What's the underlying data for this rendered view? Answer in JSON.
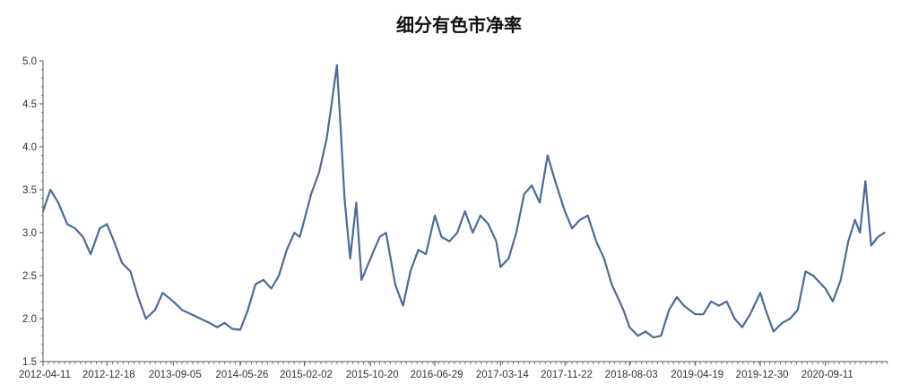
{
  "title": "细分有色市净率",
  "chart_data": {
    "type": "line",
    "title": "细分有色市净率",
    "xlabel": "",
    "ylabel": "",
    "ylim": [
      1.5,
      5.0
    ],
    "yticks": [
      "1.5",
      "2.0",
      "2.5",
      "3.0",
      "3.5",
      "4.0",
      "4.5",
      "5.0"
    ],
    "xticks": [
      "2012-04-11",
      "2012-12-18",
      "2013-09-05",
      "2014-05-26",
      "2015-02-02",
      "2015-10-20",
      "2016-06-29",
      "2017-03-14",
      "2017-11-22",
      "2018-08-03",
      "2019-04-19",
      "2019-12-30",
      "2020-09-11"
    ],
    "grid": false,
    "legend": "none",
    "line_color": "#4a6c9b",
    "series": [
      {
        "x": [
          "2012-04-11",
          "2012-05-10",
          "2012-06-10",
          "2012-07-15",
          "2012-08-15",
          "2012-09-15",
          "2012-10-15",
          "2012-11-20",
          "2012-12-18",
          "2013-01-15",
          "2013-02-15",
          "2013-03-20",
          "2013-04-20",
          "2013-05-20",
          "2013-06-25",
          "2013-07-25",
          "2013-09-05",
          "2013-10-10",
          "2013-11-15",
          "2013-12-20",
          "2014-01-25",
          "2014-02-25",
          "2014-03-25",
          "2014-04-25",
          "2014-05-26",
          "2014-06-25",
          "2014-07-25",
          "2014-08-25",
          "2014-09-25",
          "2014-10-25",
          "2014-11-25",
          "2014-12-25",
          "2015-01-15",
          "2015-02-02",
          "2015-03-01",
          "2015-04-01",
          "2015-05-01",
          "2015-05-20",
          "2015-06-10",
          "2015-06-25",
          "2015-07-10",
          "2015-08-01",
          "2015-08-25",
          "2015-09-15",
          "2015-10-20",
          "2015-11-25",
          "2015-12-20",
          "2016-01-25",
          "2016-02-25",
          "2016-03-25",
          "2016-04-25",
          "2016-05-25",
          "2016-06-29",
          "2016-07-25",
          "2016-08-25",
          "2016-09-25",
          "2016-10-25",
          "2016-11-25",
          "2016-12-25",
          "2017-01-25",
          "2017-02-25",
          "2017-03-14",
          "2017-04-15",
          "2017-05-15",
          "2017-06-15",
          "2017-07-15",
          "2017-08-15",
          "2017-09-15",
          "2017-10-15",
          "2017-11-22",
          "2017-12-20",
          "2018-01-20",
          "2018-02-20",
          "2018-03-25",
          "2018-04-25",
          "2018-05-25",
          "2018-06-25",
          "2018-07-10",
          "2018-08-03",
          "2018-09-05",
          "2018-10-05",
          "2018-11-05",
          "2018-12-05",
          "2019-01-05",
          "2019-02-05",
          "2019-03-05",
          "2019-04-19",
          "2019-05-20",
          "2019-06-20",
          "2019-07-20",
          "2019-08-20",
          "2019-09-20",
          "2019-10-20",
          "2019-11-20",
          "2019-12-30",
          "2020-01-20",
          "2020-02-20",
          "2020-03-25",
          "2020-04-25",
          "2020-05-25",
          "2020-06-25",
          "2020-07-25",
          "2020-09-11",
          "2020-10-10",
          "2020-11-10",
          "2020-12-10",
          "2021-01-05",
          "2021-01-25",
          "2021-02-15",
          "2021-03-10",
          "2021-04-05",
          "2021-05-01"
        ],
        "values": [
          3.25,
          3.5,
          3.35,
          3.1,
          3.05,
          2.95,
          2.75,
          3.05,
          3.1,
          2.9,
          2.65,
          2.55,
          2.25,
          2.0,
          2.1,
          2.3,
          2.2,
          2.1,
          2.05,
          2.0,
          1.95,
          1.9,
          1.95,
          1.88,
          1.87,
          2.1,
          2.4,
          2.45,
          2.35,
          2.5,
          2.8,
          3.0,
          2.95,
          3.15,
          3.45,
          3.7,
          4.1,
          4.5,
          4.95,
          4.2,
          3.4,
          2.7,
          3.35,
          2.45,
          2.7,
          2.95,
          3.0,
          2.4,
          2.15,
          2.55,
          2.8,
          2.75,
          3.2,
          2.95,
          2.9,
          3.0,
          3.25,
          3.0,
          3.2,
          3.1,
          2.9,
          2.6,
          2.7,
          3.0,
          3.45,
          3.55,
          3.35,
          3.9,
          3.6,
          3.25,
          3.05,
          3.15,
          3.2,
          2.9,
          2.7,
          2.4,
          2.2,
          2.1,
          1.9,
          1.8,
          1.85,
          1.78,
          1.8,
          2.1,
          2.25,
          2.15,
          2.05,
          2.05,
          2.2,
          2.15,
          2.2,
          2.0,
          1.9,
          2.05,
          2.3,
          2.1,
          1.85,
          1.95,
          2.0,
          2.1,
          2.55,
          2.5,
          2.35,
          2.2,
          2.45,
          2.9,
          3.15,
          3.0,
          3.6,
          2.85,
          2.95,
          3.0
        ]
      }
    ]
  }
}
